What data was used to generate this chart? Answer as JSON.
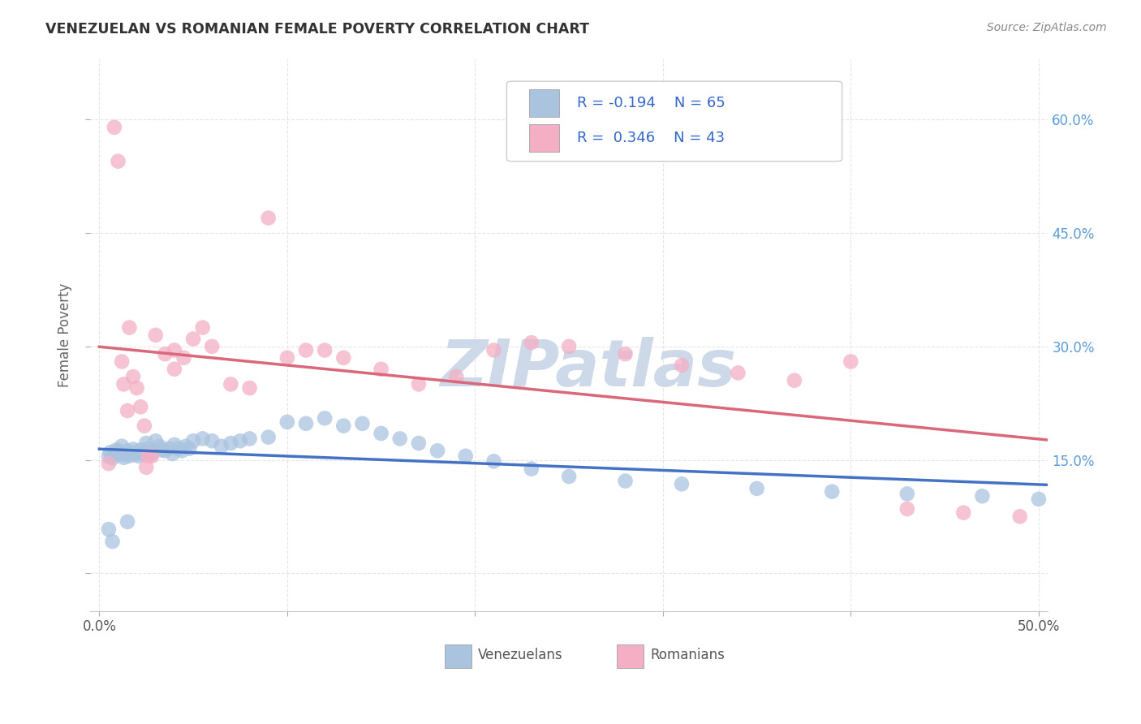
{
  "title": "VENEZUELAN VS ROMANIAN FEMALE POVERTY CORRELATION CHART",
  "source": "Source: ZipAtlas.com",
  "ylabel": "Female Poverty",
  "right_yticks": [
    "60.0%",
    "45.0%",
    "30.0%",
    "15.0%"
  ],
  "right_ytick_vals": [
    0.6,
    0.45,
    0.3,
    0.15
  ],
  "xlim": [
    -0.005,
    0.505
  ],
  "ylim": [
    -0.05,
    0.68
  ],
  "legend_r_ven": "R = -0.194",
  "legend_n_ven": "N = 65",
  "legend_r_rom": "R =  0.346",
  "legend_n_rom": "N = 43",
  "venezuelan_color": "#aac4e0",
  "romanian_color": "#f4afc5",
  "venezuelan_line_color": "#4472c4",
  "romanian_line_color": "#d9687a",
  "dash_color": "#c8c8c8",
  "watermark_color": "#cdd8e8",
  "background_color": "#ffffff",
  "title_color": "#333333",
  "source_color": "#888888",
  "right_tick_color": "#5b9bd5",
  "legend_text_color": "#3366cc",
  "bottom_label_color": "#555555",
  "venezuelan_x": [
    0.005,
    0.006,
    0.007,
    0.008,
    0.009,
    0.01,
    0.011,
    0.012,
    0.013,
    0.014,
    0.015,
    0.016,
    0.017,
    0.018,
    0.019,
    0.02,
    0.021,
    0.022,
    0.023,
    0.025,
    0.026,
    0.027,
    0.028,
    0.03,
    0.032,
    0.033,
    0.035,
    0.037,
    0.039,
    0.04,
    0.042,
    0.044,
    0.046,
    0.048,
    0.05,
    0.055,
    0.06,
    0.065,
    0.07,
    0.075,
    0.08,
    0.09,
    0.1,
    0.11,
    0.12,
    0.13,
    0.14,
    0.15,
    0.16,
    0.17,
    0.18,
    0.195,
    0.21,
    0.23,
    0.25,
    0.28,
    0.31,
    0.35,
    0.39,
    0.43,
    0.47,
    0.5,
    0.005,
    0.007,
    0.015
  ],
  "venezuelan_y": [
    0.155,
    0.16,
    0.152,
    0.158,
    0.163,
    0.162,
    0.157,
    0.168,
    0.153,
    0.158,
    0.162,
    0.155,
    0.159,
    0.164,
    0.157,
    0.16,
    0.155,
    0.163,
    0.158,
    0.172,
    0.165,
    0.16,
    0.158,
    0.175,
    0.168,
    0.163,
    0.162,
    0.165,
    0.158,
    0.17,
    0.165,
    0.162,
    0.168,
    0.165,
    0.175,
    0.178,
    0.175,
    0.168,
    0.172,
    0.175,
    0.178,
    0.18,
    0.2,
    0.198,
    0.205,
    0.195,
    0.198,
    0.185,
    0.178,
    0.172,
    0.162,
    0.155,
    0.148,
    0.138,
    0.128,
    0.122,
    0.118,
    0.112,
    0.108,
    0.105,
    0.102,
    0.098,
    0.058,
    0.042,
    0.068
  ],
  "romanian_x": [
    0.005,
    0.008,
    0.01,
    0.012,
    0.013,
    0.015,
    0.016,
    0.018,
    0.02,
    0.022,
    0.024,
    0.026,
    0.028,
    0.03,
    0.035,
    0.04,
    0.045,
    0.05,
    0.055,
    0.06,
    0.07,
    0.08,
    0.09,
    0.1,
    0.11,
    0.12,
    0.13,
    0.15,
    0.17,
    0.19,
    0.21,
    0.23,
    0.25,
    0.28,
    0.31,
    0.34,
    0.37,
    0.4,
    0.43,
    0.46,
    0.49,
    0.04,
    0.025
  ],
  "romanian_y": [
    0.145,
    0.59,
    0.545,
    0.28,
    0.25,
    0.215,
    0.325,
    0.26,
    0.245,
    0.22,
    0.195,
    0.155,
    0.155,
    0.315,
    0.29,
    0.27,
    0.285,
    0.31,
    0.325,
    0.3,
    0.25,
    0.245,
    0.47,
    0.285,
    0.295,
    0.295,
    0.285,
    0.27,
    0.25,
    0.26,
    0.295,
    0.305,
    0.3,
    0.29,
    0.275,
    0.265,
    0.255,
    0.28,
    0.085,
    0.08,
    0.075,
    0.295,
    0.14
  ],
  "xtick_positions": [
    0.0,
    0.1,
    0.2,
    0.3,
    0.4,
    0.5
  ],
  "ytick_positions": [
    0.0,
    0.15,
    0.3,
    0.45,
    0.6
  ]
}
